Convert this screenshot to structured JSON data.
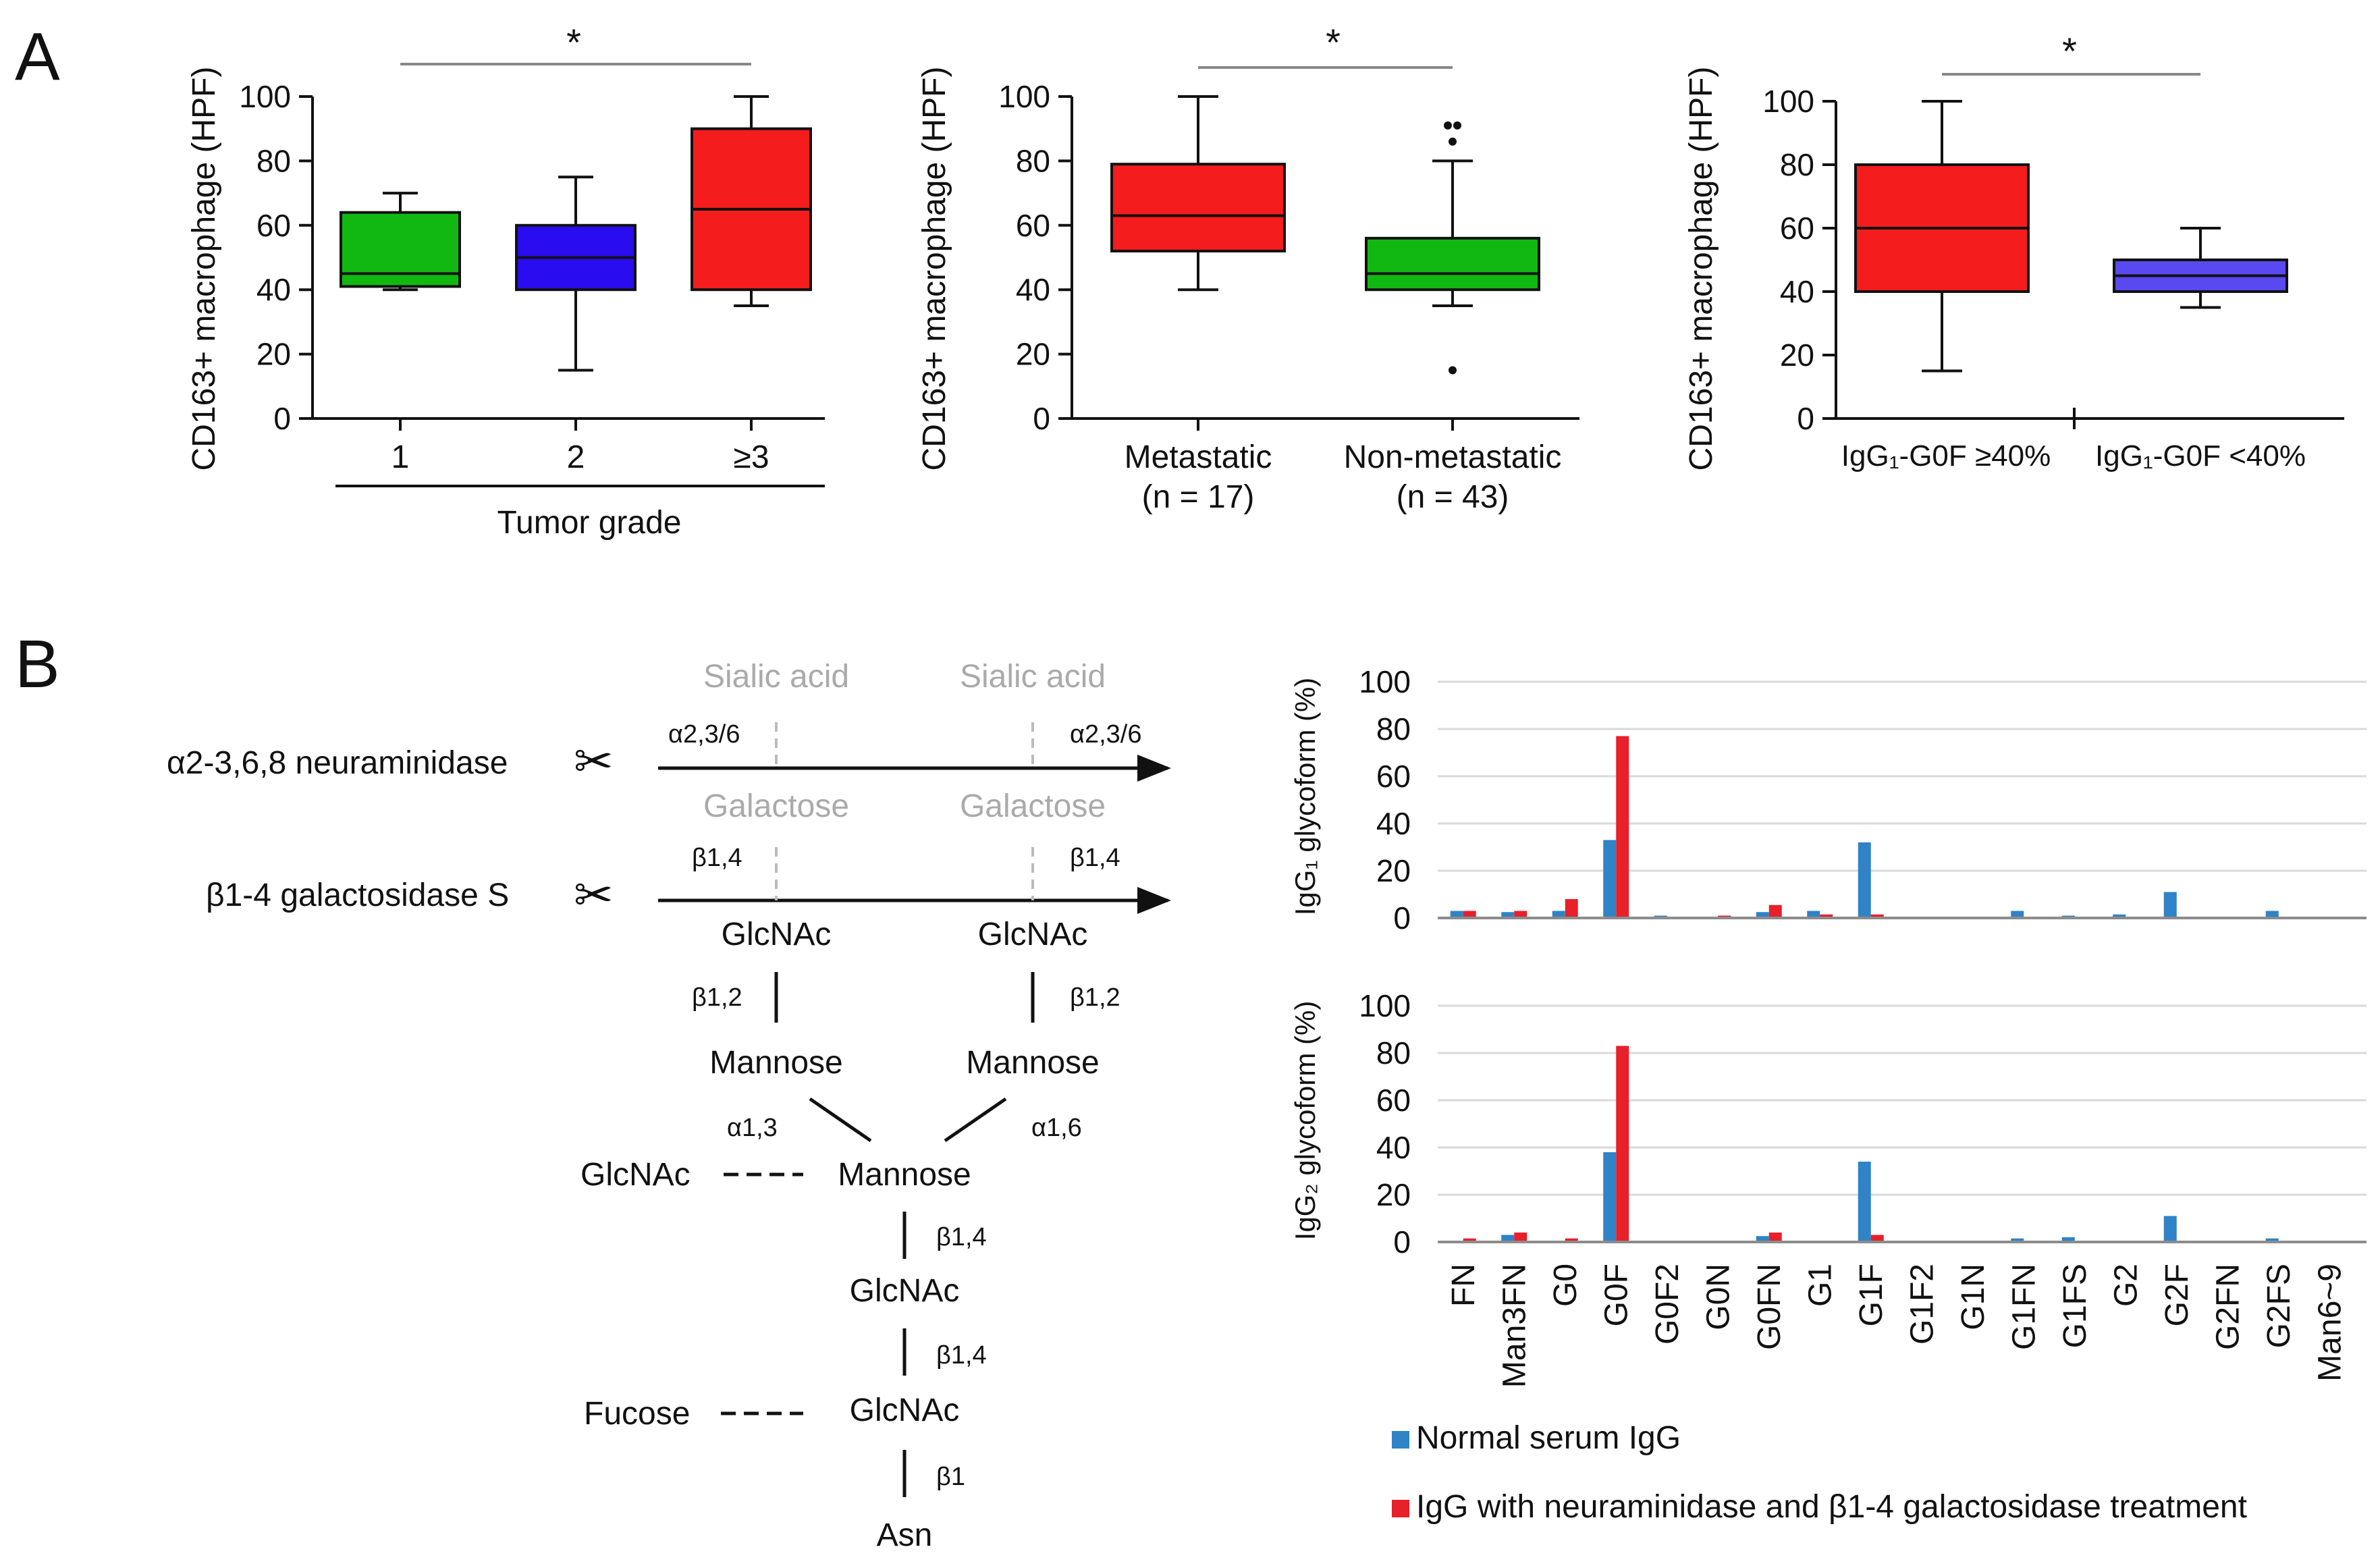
{
  "panel_labels": {
    "a": "A",
    "b": "B"
  },
  "colors": {
    "green": "#12b812",
    "blue": "#2a0cf0",
    "red": "#f41c1c",
    "light_blue": "#5a48f0",
    "bar_blue": "#2f83c6",
    "bar_red": "#e8202a"
  },
  "chart_data": [
    {
      "type": "box",
      "id": "grade",
      "ylabel": "CD163+ macrophage (HPF)",
      "xlabel": "Tumor grade",
      "ylim": [
        0,
        100
      ],
      "yticks": [
        "0",
        "20",
        "40",
        "60",
        "80",
        "100"
      ],
      "significance": "*",
      "boxes": [
        {
          "label": "1",
          "min": 40,
          "q1": 41,
          "median": 45,
          "q3": 64,
          "max": 70,
          "color": "#12b812"
        },
        {
          "label": "2",
          "min": 15,
          "q1": 40,
          "median": 50,
          "q3": 60,
          "max": 75,
          "color": "#2a0cf0"
        },
        {
          "label": "≥3",
          "min": 35,
          "q1": 40,
          "median": 65,
          "q3": 90,
          "max": 100,
          "color": "#f41c1c"
        }
      ]
    },
    {
      "type": "box",
      "id": "metastasis",
      "ylabel": "CD163+ macrophage (HPF)",
      "ylim": [
        0,
        100
      ],
      "yticks": [
        "0",
        "20",
        "40",
        "60",
        "80",
        "100"
      ],
      "significance": "*",
      "boxes": [
        {
          "label": "Metastatic",
          "sublabel": "(n = 17)",
          "min": 40,
          "q1": 52,
          "median": 63,
          "q3": 79,
          "max": 100,
          "color": "#f41c1c",
          "outliers": []
        },
        {
          "label": "Non-metastatic",
          "sublabel": "(n = 43)",
          "min": 35,
          "q1": 40,
          "median": 45,
          "q3": 56,
          "max": 80,
          "color": "#12b812",
          "outliers": [
            91,
            91,
            86,
            15
          ]
        }
      ]
    },
    {
      "type": "box",
      "id": "g0f",
      "ylabel": "CD163+ macrophage (HPF)",
      "ylim": [
        0,
        100
      ],
      "yticks": [
        "0",
        "20",
        "40",
        "60",
        "80",
        "100"
      ],
      "significance": "*",
      "boxes": [
        {
          "label": "IgG₁-G0F ≥40%",
          "min": 15,
          "q1": 40,
          "median": 60,
          "q3": 80,
          "max": 100,
          "color": "#f41c1c"
        },
        {
          "label": "IgG₁-G0F <40%",
          "min": 35,
          "q1": 40,
          "median": 45,
          "q3": 50,
          "max": 60,
          "color": "#5a48f0"
        }
      ]
    },
    {
      "type": "bar",
      "id": "igg1",
      "ylabel": "IgG₁ glycoform (%)",
      "ylim": [
        0,
        100
      ],
      "yticks": [
        "0",
        "20",
        "40",
        "60",
        "80",
        "100"
      ],
      "categories": [
        "FN",
        "Man3FN",
        "G0",
        "G0F",
        "G0F2",
        "G0N",
        "G0FN",
        "G1",
        "G1F",
        "G1F2",
        "G1N",
        "G1FN",
        "G1FS",
        "G2",
        "G2F",
        "G2FN",
        "G2FS",
        "Man6~9"
      ],
      "series": [
        {
          "name": "Normal serum IgG",
          "values": [
            3,
            2.5,
            3,
            33,
            1,
            0.5,
            2.5,
            3,
            32,
            0.5,
            0.5,
            3,
            1,
            1.5,
            11,
            0.5,
            3,
            0
          ]
        },
        {
          "name": "IgG with neuraminidase and β1-4 galactosidase treatment",
          "values": [
            3,
            3,
            8,
            77,
            0,
            1,
            5.5,
            1.5,
            1.5,
            0.5,
            0.5,
            0,
            0,
            0,
            0,
            0,
            0,
            0
          ]
        }
      ]
    },
    {
      "type": "bar",
      "id": "igg2",
      "ylabel": "IgG₂ glycoform (%)",
      "ylim": [
        0,
        100
      ],
      "yticks": [
        "0",
        "20",
        "40",
        "60",
        "80",
        "100"
      ],
      "categories": [
        "FN",
        "Man3FN",
        "G0",
        "G0F",
        "G0F2",
        "G0N",
        "G0FN",
        "G1",
        "G1F",
        "G1F2",
        "G1N",
        "G1FN",
        "G1FS",
        "G2",
        "G2F",
        "G2FN",
        "G2FS",
        "Man6~9"
      ],
      "series": [
        {
          "name": "Normal serum IgG",
          "values": [
            0.5,
            3,
            0.5,
            38,
            0,
            0,
            2.5,
            0,
            34,
            0,
            0,
            1.5,
            2,
            0,
            11,
            0,
            1.5,
            0
          ]
        },
        {
          "name": "IgG with neuraminidase and β1-4 galactosidase treatment",
          "values": [
            1.5,
            4,
            1.5,
            83,
            0,
            0,
            4,
            0,
            3,
            0,
            0,
            0,
            0,
            0,
            0,
            0,
            0,
            0
          ]
        }
      ]
    }
  ],
  "legend": [
    "Normal serum IgG",
    "IgG with neuraminidase and β1-4 galactosidase treatment"
  ],
  "diagram": {
    "enzymes": [
      "α2-3,6,8 neuraminidase",
      "β1-4 galactosidase S"
    ],
    "scissors": "✂",
    "nodes": {
      "sialic_left": "Sialic acid",
      "sialic_right": "Sialic acid",
      "gal_left": "Galactose",
      "gal_right": "Galactose",
      "glcnac_left": "GlcNAc",
      "glcnac_right": "GlcNAc",
      "man_left": "Mannose",
      "man_right": "Mannose",
      "bisect": "GlcNAc",
      "man_core": "Mannose",
      "glcnac_core1": "GlcNAc",
      "fucose": "Fucose",
      "glcnac_core2": "GlcNAc",
      "asn": "Asn"
    },
    "linkages": {
      "a236_left": "α2,3/6",
      "a236_right": "α2,3/6",
      "b14_left": "β1,4",
      "b14_right": "β1,4",
      "b12_left": "β1,2",
      "b12_right": "β1,2",
      "a13": "α1,3",
      "a16": "α1,6",
      "b14_core1": "β1,4",
      "b14_core2": "β1,4",
      "b1": "β1"
    }
  }
}
